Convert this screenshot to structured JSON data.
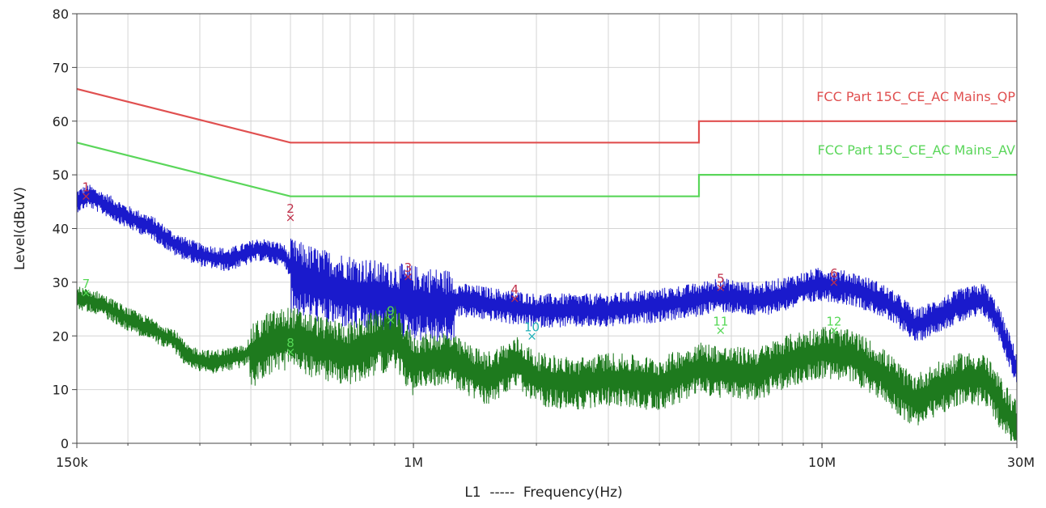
{
  "chart_data": {
    "type": "line",
    "xscale": "log",
    "xlim": [
      150000,
      30000000
    ],
    "ylim": [
      0,
      80
    ],
    "ylabel": "Level(dBuV)",
    "xlabel": "L1  -----  Frequency(Hz)",
    "y_ticks": [
      0,
      10,
      20,
      30,
      40,
      50,
      60,
      70,
      80
    ],
    "x_ticks": [
      {
        "value": 150000,
        "label": "150k"
      },
      {
        "value": 1000000,
        "label": "1M"
      },
      {
        "value": 10000000,
        "label": "10M"
      },
      {
        "value": 30000000,
        "label": "30M"
      }
    ],
    "grid": true,
    "colors": {
      "qp_limit": "#e05050",
      "av_limit": "#5ad65a",
      "peak_trace": "#1a1acc",
      "avg_trace": "#1e7a1e",
      "marker_red": "#c0304a",
      "marker_green": "#56d856",
      "marker_cyan": "#20b0b8",
      "grid": "#d4d4d4"
    },
    "limit_lines": [
      {
        "label": "FCC Part 15C_CE_AC Mains_QP",
        "points": [
          [
            150000,
            66
          ],
          [
            500000,
            56
          ],
          [
            5000000,
            56
          ],
          [
            5000000,
            60
          ],
          [
            30000000,
            60
          ]
        ]
      },
      {
        "label": "FCC Part 15C_CE_AC Mains_AV",
        "points": [
          [
            150000,
            56
          ],
          [
            500000,
            46
          ],
          [
            5000000,
            46
          ],
          [
            5000000,
            50
          ],
          [
            30000000,
            50
          ]
        ]
      }
    ],
    "series": [
      {
        "id": "peak",
        "envelope": [
          [
            150000,
            46
          ],
          [
            160000,
            47
          ],
          [
            180000,
            45
          ],
          [
            200000,
            43
          ],
          [
            230000,
            41
          ],
          [
            260000,
            38
          ],
          [
            300000,
            36
          ],
          [
            350000,
            35
          ],
          [
            420000,
            37
          ],
          [
            480000,
            36
          ],
          [
            500000,
            34
          ],
          [
            600000,
            32
          ],
          [
            700000,
            31
          ],
          [
            800000,
            30
          ],
          [
            1000000,
            29
          ],
          [
            1300000,
            28
          ],
          [
            1600000,
            27
          ],
          [
            2000000,
            26
          ],
          [
            2500000,
            26
          ],
          [
            3000000,
            26
          ],
          [
            4000000,
            27
          ],
          [
            5000000,
            28
          ],
          [
            5500000,
            29
          ],
          [
            7000000,
            28
          ],
          [
            8000000,
            29
          ],
          [
            10000000,
            31
          ],
          [
            12000000,
            30
          ],
          [
            14000000,
            28
          ],
          [
            16000000,
            25
          ],
          [
            17000000,
            23
          ],
          [
            19000000,
            25
          ],
          [
            22000000,
            27
          ],
          [
            25000000,
            28
          ],
          [
            27000000,
            24
          ],
          [
            30000000,
            15
          ]
        ]
      },
      {
        "id": "average",
        "envelope": [
          [
            150000,
            28
          ],
          [
            170000,
            27
          ],
          [
            200000,
            24
          ],
          [
            230000,
            22
          ],
          [
            260000,
            20
          ],
          [
            280000,
            17
          ],
          [
            320000,
            16
          ],
          [
            380000,
            17
          ],
          [
            440000,
            21
          ],
          [
            500000,
            22
          ],
          [
            600000,
            20
          ],
          [
            700000,
            19
          ],
          [
            800000,
            21
          ],
          [
            900000,
            22
          ],
          [
            1000000,
            17
          ],
          [
            1200000,
            18
          ],
          [
            1500000,
            14
          ],
          [
            1800000,
            17
          ],
          [
            2000000,
            14
          ],
          [
            2500000,
            13
          ],
          [
            3000000,
            14
          ],
          [
            4000000,
            13
          ],
          [
            5000000,
            16
          ],
          [
            6000000,
            15
          ],
          [
            7000000,
            15
          ],
          [
            8000000,
            17
          ],
          [
            10000000,
            19
          ],
          [
            12000000,
            18
          ],
          [
            14000000,
            15
          ],
          [
            16000000,
            11
          ],
          [
            17000000,
            10
          ],
          [
            19000000,
            12
          ],
          [
            22000000,
            14
          ],
          [
            25000000,
            14
          ],
          [
            27000000,
            10
          ],
          [
            30000000,
            5
          ]
        ]
      }
    ],
    "markers": [
      {
        "label": "1",
        "x": 158000,
        "y": 46,
        "color": "#c0304a"
      },
      {
        "label": "2",
        "x": 500000,
        "y": 42,
        "color": "#c0304a"
      },
      {
        "label": "3",
        "x": 970000,
        "y": 31,
        "color": "#c0304a"
      },
      {
        "label": "4",
        "x": 1770000,
        "y": 27,
        "color": "#c0304a"
      },
      {
        "label": "5",
        "x": 5650000,
        "y": 29,
        "color": "#c0304a"
      },
      {
        "label": "6",
        "x": 10700000,
        "y": 30,
        "color": "#c0304a"
      },
      {
        "label": "7",
        "x": 158000,
        "y": 28,
        "color": "#56d856"
      },
      {
        "label": "8",
        "x": 500000,
        "y": 17,
        "color": "#56d856"
      },
      {
        "label": "9",
        "x": 880000,
        "y": 23,
        "color": "#56d856"
      },
      {
        "label": "10",
        "x": 1950000,
        "y": 20,
        "color": "#20b0b8"
      },
      {
        "label": "11",
        "x": 5650000,
        "y": 21,
        "color": "#56d856"
      },
      {
        "label": "12",
        "x": 10700000,
        "y": 21,
        "color": "#56d856"
      }
    ]
  }
}
